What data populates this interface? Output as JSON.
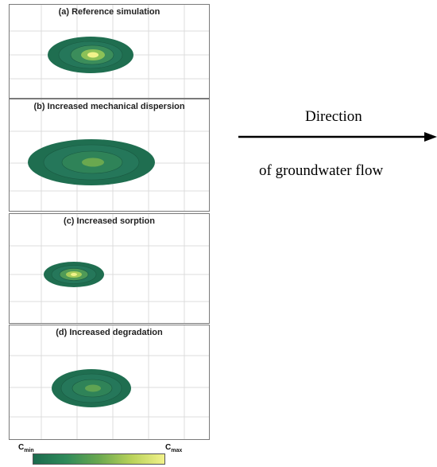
{
  "panels": {
    "a": {
      "title": "(a) Reference simulation"
    },
    "b": {
      "title": "(b) Increased mechanical dispersion"
    },
    "c": {
      "title": "(c) Increased sorption"
    },
    "d": {
      "title": "(d) Increased degradation"
    }
  },
  "flow": {
    "line1": "Direction",
    "line2": "of groundwater flow"
  },
  "colorbar": {
    "min_label": "Cmin",
    "max_label": "Cmax",
    "colors": [
      "#1b6b4e",
      "#2f8a5a",
      "#6aa84f",
      "#b9d25a",
      "#f2f28a"
    ]
  }
}
